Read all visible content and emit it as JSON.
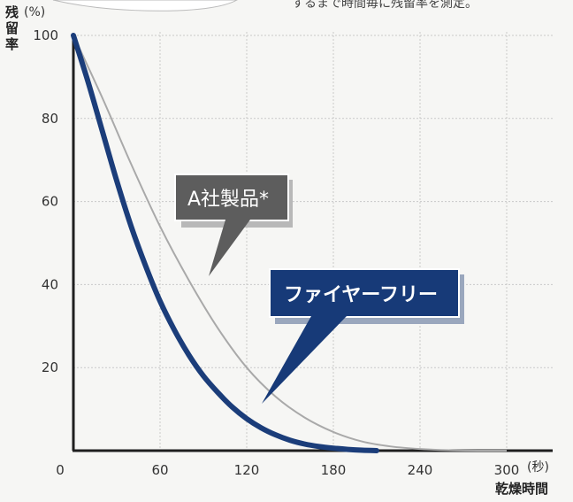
{
  "chart_data": {
    "type": "line",
    "title": "",
    "ylabel": "残留率",
    "ylabel_unit": "(%)",
    "xlabel": "乾燥時間",
    "xlabel_unit": "(秒)",
    "xlim": [
      0,
      300
    ],
    "ylim": [
      0,
      100
    ],
    "x_ticks": [
      0,
      60,
      120,
      180,
      240,
      300
    ],
    "y_ticks": [
      20,
      40,
      60,
      80,
      100
    ],
    "grid": true,
    "series": [
      {
        "name": "A社製品*",
        "color": "#a9a9a9",
        "x": [
          0,
          20,
          40,
          60,
          80,
          100,
          120,
          140,
          160,
          180,
          200,
          220,
          240,
          260,
          280,
          300
        ],
        "y": [
          100,
          85,
          69,
          54,
          41,
          29.5,
          20,
          13,
          8,
          4.5,
          2.2,
          1,
          0.4,
          0.1,
          0,
          0
        ]
      },
      {
        "name": "ファイヤーフリー",
        "color": "#1b3d7a",
        "x": [
          0,
          10,
          20,
          30,
          40,
          50,
          60,
          70,
          80,
          90,
          100,
          110,
          120,
          130,
          140,
          150,
          160,
          170,
          180,
          190,
          200,
          210
        ],
        "y": [
          100,
          89,
          77,
          65,
          54,
          44.5,
          36,
          29,
          23,
          18,
          14,
          10.5,
          7.7,
          5.5,
          3.8,
          2.5,
          1.6,
          1,
          0.6,
          0.3,
          0.1,
          0
        ]
      }
    ],
    "annotations": [
      {
        "text": "A社製品*",
        "series": "A社製品*"
      },
      {
        "text": "ファイヤーフリー",
        "series": "ファイヤーフリー"
      }
    ]
  },
  "top_note": "するまで時間毎に残留率を測定。"
}
